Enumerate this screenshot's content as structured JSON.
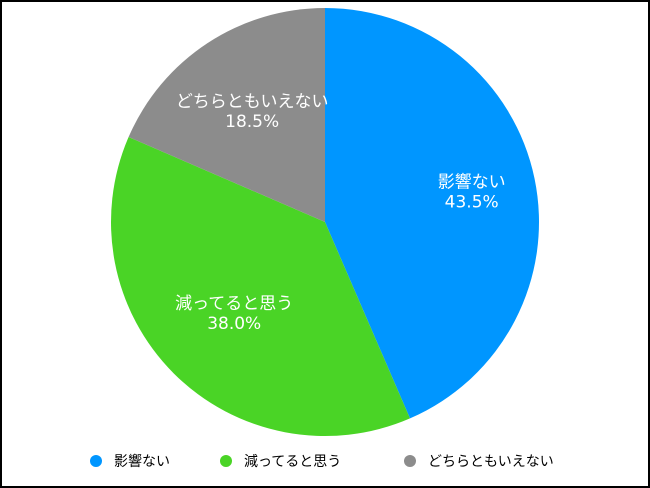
{
  "chart_data": {
    "type": "pie",
    "categories": [
      "影響ない",
      "減ってると思う",
      "どちらともいえない"
    ],
    "values": [
      43.5,
      38.0,
      18.5
    ],
    "value_labels": [
      "43.5%",
      "38.0%",
      "18.5%"
    ],
    "colors": [
      "#0096ff",
      "#4ad426",
      "#8c8c8c"
    ],
    "start_angle": "12 o'clock",
    "direction": "clockwise",
    "legend_placement": "bottom"
  }
}
